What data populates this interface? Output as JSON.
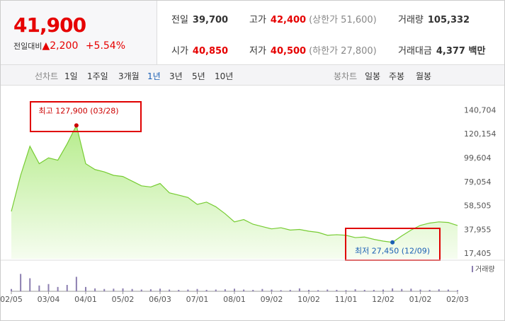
{
  "quote": {
    "price": "41,900",
    "change_label": "전일대비",
    "change": "2,200",
    "change_pct": "+5.54%",
    "fields": [
      {
        "label": "전일",
        "value": "39,700"
      },
      {
        "label": "고가",
        "value": "42,400",
        "note": "(상한가 51,600)"
      },
      {
        "label": "거래량",
        "value": "105,332"
      },
      {
        "label": "시가",
        "value": "40,850"
      },
      {
        "label": "저가",
        "value": "40,500",
        "note": "(하한가 27,800)"
      },
      {
        "label": "거래대금",
        "value": "4,377 백만"
      }
    ]
  },
  "tabs": {
    "line_label": "선차트",
    "line": [
      "1일",
      "1주일",
      "3개월",
      "1년",
      "3년",
      "5년",
      "10년"
    ],
    "candle_label": "봉차트",
    "candle": [
      "일봉",
      "주봉",
      "월봉"
    ]
  },
  "chart_data": [
    {
      "type": "area",
      "categories": [
        "02/05",
        null,
        null,
        null,
        "03/04",
        null,
        null,
        null,
        "04/01",
        null,
        null,
        null,
        "05/02",
        null,
        null,
        null,
        "06/03",
        null,
        null,
        null,
        "07/01",
        null,
        null,
        null,
        "08/01",
        null,
        null,
        null,
        "09/02",
        null,
        null,
        null,
        "10/02",
        null,
        null,
        null,
        "11/01",
        null,
        null,
        null,
        "12/02",
        null,
        null,
        null,
        "01/02",
        null,
        null,
        null,
        "02/03"
      ],
      "series": [
        {
          "color": "#77cc33",
          "values": [
            54000,
            85000,
            110000,
            95000,
            100000,
            98000,
            112000,
            127900,
            95000,
            90000,
            88000,
            85000,
            84000,
            80000,
            76000,
            75000,
            78000,
            70000,
            68000,
            66000,
            60000,
            62000,
            58000,
            52000,
            45000,
            47000,
            43000,
            41000,
            39000,
            40000,
            38000,
            38500,
            37000,
            36000,
            33500,
            34000,
            33500,
            31500,
            32000,
            30000,
            28500,
            27450,
            33000,
            38000,
            42000,
            44000,
            45000,
            44500,
            41900
          ]
        }
      ],
      "ylim": [
        13300,
        150000
      ],
      "yticks": [
        {
          "value": 17405,
          "label": "17,405"
        },
        {
          "value": 37955,
          "label": "37,955"
        },
        {
          "value": 58505,
          "label": "58,505"
        },
        {
          "value": 79054,
          "label": "79,054"
        },
        {
          "value": 99604,
          "label": "99,604"
        },
        {
          "value": 120154,
          "label": "120,154"
        },
        {
          "value": 140704,
          "label": "140,704"
        }
      ],
      "grid": false,
      "annotations": [
        {
          "text": "최고 127,900 (03/28)",
          "index": 7,
          "color": "#cc0000"
        },
        {
          "text": "최저 27,450 (12/09)",
          "index": 41,
          "color": "#1a5fb4"
        }
      ]
    },
    {
      "type": "bar",
      "series": [
        {
          "name": "거래량",
          "color": "#8c7fb0",
          "values": [
            8,
            60,
            45,
            20,
            25,
            15,
            22,
            50,
            15,
            10,
            8,
            9,
            10,
            8,
            6,
            7,
            9,
            6,
            5,
            6,
            8,
            5,
            6,
            7,
            9,
            6,
            5,
            8,
            6,
            4,
            5,
            10,
            5,
            4,
            6,
            5,
            4,
            7,
            5,
            5,
            6,
            10,
            8,
            9,
            6,
            5,
            7,
            6,
            4
          ]
        }
      ],
      "ylim": [
        0,
        100
      ]
    }
  ]
}
